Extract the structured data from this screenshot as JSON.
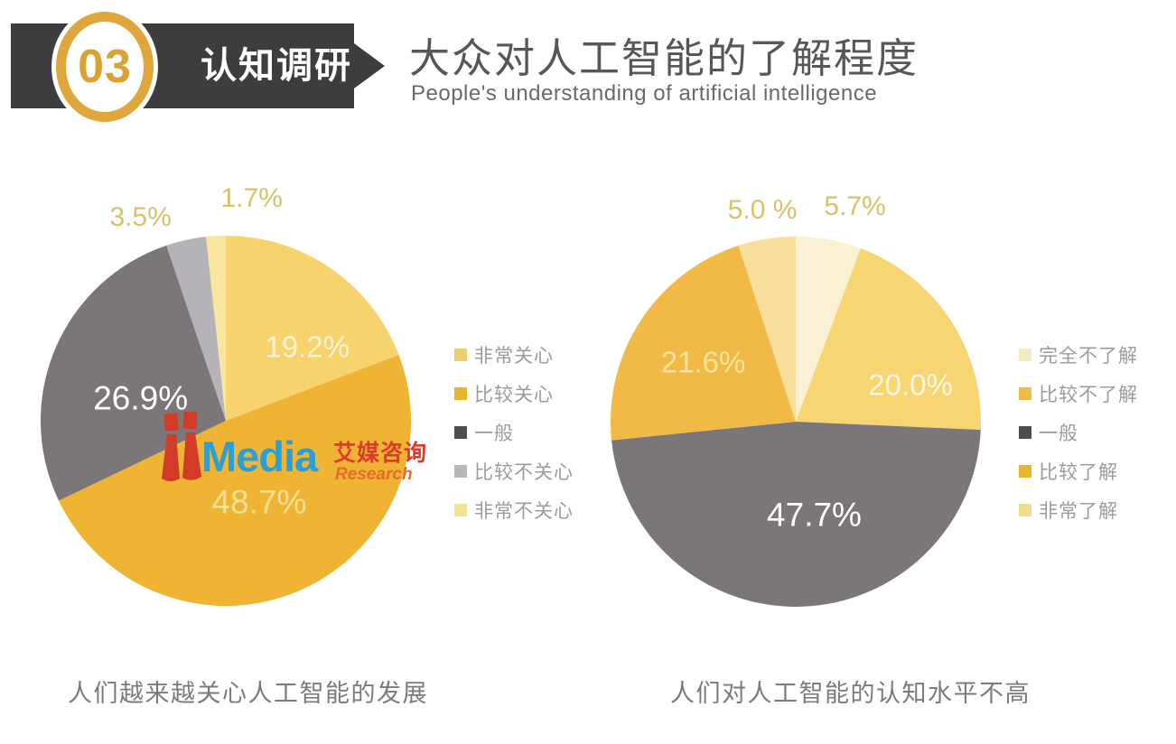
{
  "header": {
    "badge_number": "03",
    "section_label": "认知调研",
    "title": "大众对人工智能的了解程度",
    "subtitle": "People's understanding of artificial intelligence",
    "banner_color": "#3E3C3E",
    "badge_ring_color": "#DFA63C"
  },
  "logo": {
    "media_text": "Media",
    "cn_text": "艾媒咨询",
    "research_text": "Research",
    "figure_color": "#D23B28",
    "media_color": "#2B9FD6",
    "cn_color": "#E0392C",
    "research_color": "#E76A2B"
  },
  "chart_data": [
    {
      "type": "pie",
      "caption": "人们越来越关心人工智能的发展",
      "start_angle_deg": 0,
      "direction": "clockwise",
      "legend_position": "right",
      "slices": [
        {
          "label": "非常关心",
          "value": 19.2,
          "display": "19.2%",
          "color": "#F7D36E",
          "legend_color": "#E9CF6F",
          "label_color": "rgba(255,255,255,0.72)",
          "label_xy": [
            72,
            30
          ],
          "label_size": "md"
        },
        {
          "label": "比较关心",
          "value": 48.7,
          "display": "48.7%",
          "color": "#EFB434",
          "legend_color": "#E9B52F",
          "label_color": "#F6E094",
          "label_xy": [
            59,
            72
          ],
          "label_size": "lg"
        },
        {
          "label": "一般",
          "value": 26.9,
          "display": "26.9%",
          "color": "#7B7779",
          "legend_color": "#504D50",
          "label_color": "#FFFFFF",
          "label_xy": [
            27,
            44
          ],
          "label_size": "lg"
        },
        {
          "label": "比较不关心",
          "value": 3.5,
          "display": "3.5%",
          "color": "#B5B3B7",
          "legend_color": "#B9B7BB",
          "label_color": "#D8C167",
          "label_xy": [
            27,
            -5
          ],
          "label_size": "out"
        },
        {
          "label": "非常不关心",
          "value": 1.7,
          "display": "1.7%",
          "color": "#F7E5A0",
          "legend_color": "#EFE394",
          "label_color": "#D8C167",
          "label_xy": [
            57,
            -10
          ],
          "label_size": "out"
        }
      ]
    },
    {
      "type": "pie",
      "caption": "人们对人工智能的认知水平不高",
      "start_angle_deg": 0,
      "direction": "clockwise",
      "legend_position": "right",
      "slices": [
        {
          "label": "完全不了解",
          "value": 5.7,
          "display": "5.7%",
          "color": "#FAF0D3",
          "legend_color": "#F4E9C0",
          "label_color": "#D8C167",
          "label_xy": [
            66,
            -8
          ],
          "label_size": "out"
        },
        {
          "label": "比较不了解",
          "value": 20.0,
          "display": "20.0%",
          "color": "#F8D573",
          "legend_color": "#EDBE47",
          "label_color": "rgba(255,255,255,0.8)",
          "label_xy": [
            81,
            40
          ],
          "label_size": "md"
        },
        {
          "label": "一般",
          "value": 47.7,
          "display": "47.7%",
          "color": "#7B7779",
          "legend_color": "#504D50",
          "label_color": "#FFFFFF",
          "label_xy": [
            55,
            75
          ],
          "label_size": "lg"
        },
        {
          "label": "比较了解",
          "value": 21.6,
          "display": "21.6%",
          "color": "#F1BA47",
          "legend_color": "#E9B52F",
          "label_color": "#F8E69C",
          "label_xy": [
            25,
            34
          ],
          "label_size": "md"
        },
        {
          "label": "非常了解",
          "value": 5.0,
          "display": "5.0 %",
          "color": "#F7DE9A",
          "legend_color": "#EDDF8E",
          "label_color": "#D8C167",
          "label_xy": [
            41,
            -7
          ],
          "label_size": "out"
        }
      ]
    }
  ]
}
